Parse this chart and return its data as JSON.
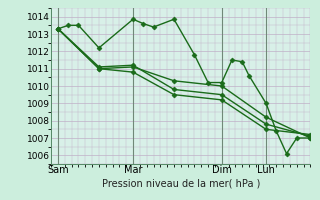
{
  "background_color": "#cceedd",
  "plot_bg_color": "#d8f0e8",
  "grid_color_h": "#c0b0c8",
  "grid_color_v": "#c0b0c8",
  "vline_color": "#708878",
  "line_color": "#1a6b1a",
  "marker": "D",
  "markersize": 2.5,
  "linewidth": 1.0,
  "xlabel": "Pression niveau de la mer( hPa )",
  "ylabel": "",
  "xlim": [
    0,
    76
  ],
  "ylim": [
    1005.5,
    1014.5
  ],
  "yticks": [
    1006,
    1007,
    1008,
    1009,
    1010,
    1011,
    1012,
    1013,
    1014
  ],
  "xtick_positions": [
    2,
    24,
    50,
    63
  ],
  "xtick_labels": [
    "Sam",
    "Mar",
    "Dim",
    "Lun"
  ],
  "vlines": [
    2,
    24,
    50,
    63
  ],
  "series": [
    [
      [
        2,
        1013.3
      ],
      [
        5,
        1013.5
      ],
      [
        8,
        1013.5
      ],
      [
        14,
        1012.2
      ],
      [
        24,
        1013.85
      ],
      [
        27,
        1013.6
      ],
      [
        30,
        1013.4
      ],
      [
        36,
        1013.85
      ],
      [
        42,
        1011.8
      ],
      [
        46,
        1010.2
      ],
      [
        50,
        1010.2
      ],
      [
        53,
        1011.5
      ],
      [
        56,
        1011.4
      ],
      [
        58,
        1010.6
      ],
      [
        63,
        1009.0
      ],
      [
        66,
        1007.4
      ],
      [
        69,
        1006.1
      ],
      [
        72,
        1007.0
      ],
      [
        76,
        1007.0
      ]
    ],
    [
      [
        2,
        1013.3
      ],
      [
        14,
        1011.0
      ],
      [
        24,
        1011.1
      ],
      [
        36,
        1010.3
      ],
      [
        50,
        1010.0
      ],
      [
        63,
        1008.2
      ],
      [
        76,
        1007.0
      ]
    ],
    [
      [
        2,
        1013.3
      ],
      [
        14,
        1011.1
      ],
      [
        24,
        1011.2
      ],
      [
        36,
        1009.8
      ],
      [
        50,
        1009.5
      ],
      [
        63,
        1007.8
      ],
      [
        76,
        1007.1
      ]
    ],
    [
      [
        2,
        1013.3
      ],
      [
        14,
        1011.0
      ],
      [
        24,
        1010.8
      ],
      [
        36,
        1009.5
      ],
      [
        50,
        1009.2
      ],
      [
        63,
        1007.5
      ],
      [
        76,
        1007.2
      ]
    ]
  ]
}
